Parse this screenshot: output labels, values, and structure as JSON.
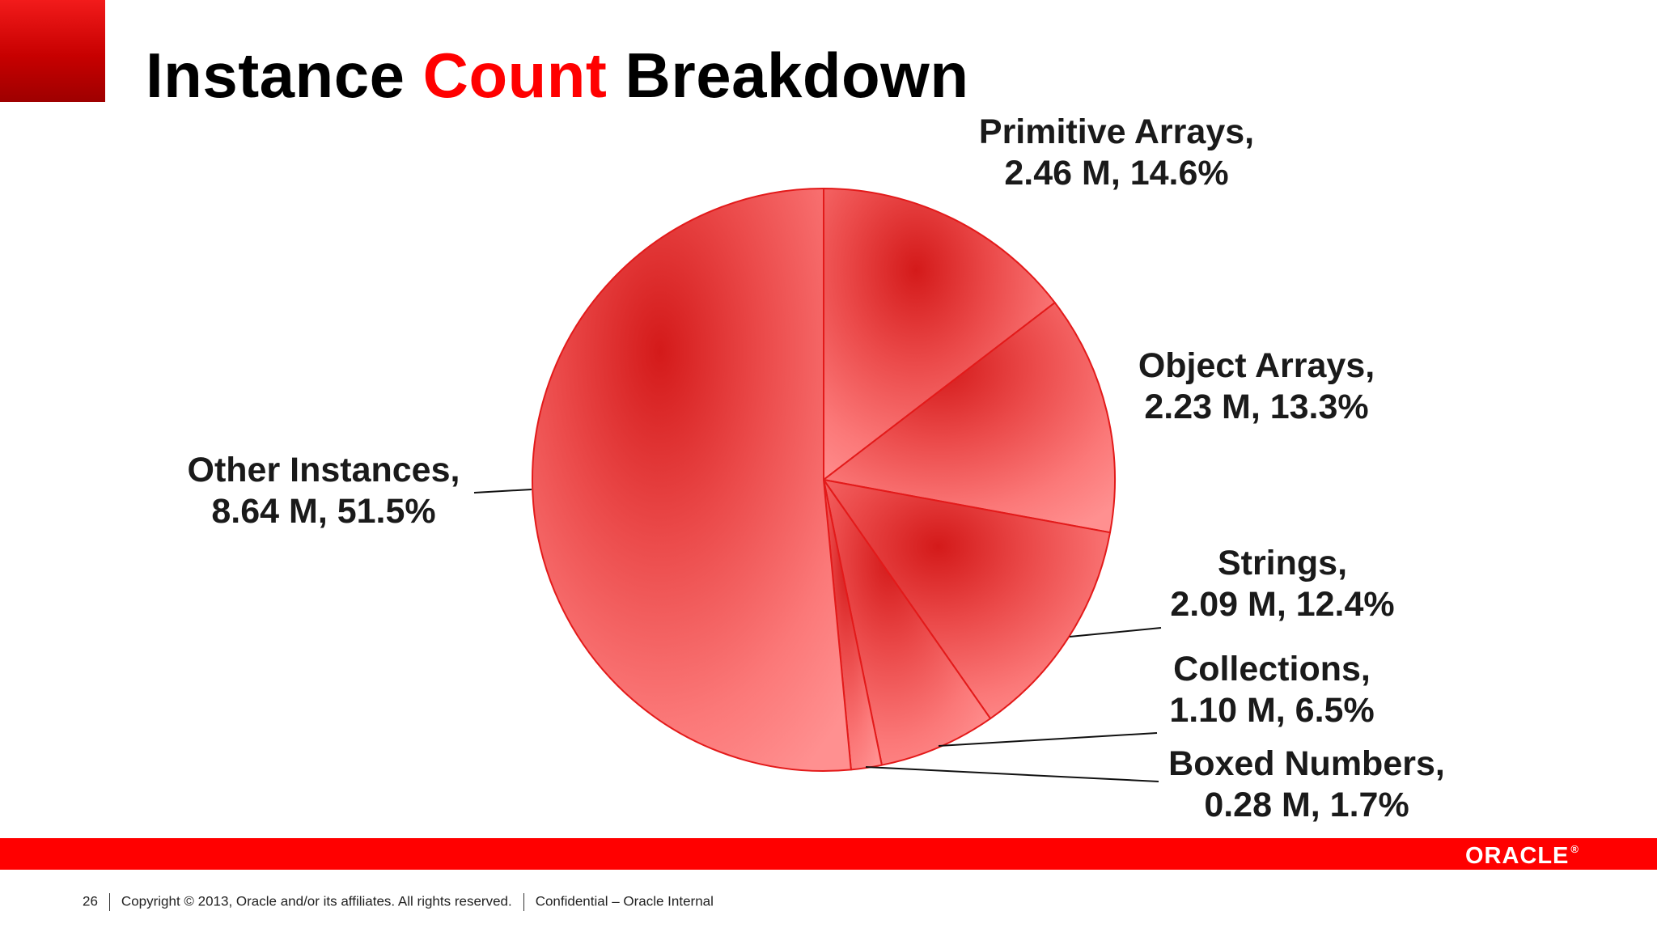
{
  "slide": {
    "title_part1": "Instance ",
    "title_accent": "Count",
    "title_part2": " Breakdown",
    "accent_color": "#ff0000"
  },
  "chart_data": {
    "type": "pie",
    "title": "Instance Count Breakdown",
    "slices": [
      {
        "name": "Primitive Arrays",
        "value_m": 2.46,
        "percent": 14.6,
        "line1": "Primitive Arrays,",
        "line2": "2.46 M, 14.6%"
      },
      {
        "name": "Object Arrays",
        "value_m": 2.23,
        "percent": 13.3,
        "line1": "Object Arrays,",
        "line2": "2.23 M, 13.3%"
      },
      {
        "name": "Strings",
        "value_m": 2.09,
        "percent": 12.4,
        "line1": "Strings,",
        "line2": "2.09 M, 12.4%"
      },
      {
        "name": "Collections",
        "value_m": 1.1,
        "percent": 6.5,
        "line1": "Collections,",
        "line2": "1.10 M, 6.5%"
      },
      {
        "name": "Boxed Numbers",
        "value_m": 0.28,
        "percent": 1.7,
        "line1": "Boxed Numbers,",
        "line2": "0.28 M, 1.7%"
      },
      {
        "name": "Other Instances",
        "value_m": 8.64,
        "percent": 51.5,
        "line1": "Other Instances,",
        "line2": "8.64 M, 51.5%"
      }
    ],
    "start_angle_deg": 0,
    "direction": "clockwise",
    "exploded": [
      "Strings",
      "Collections",
      "Boxed Numbers",
      "Other Instances"
    ],
    "slice_color": "#f26060",
    "edge_color": "#e31a1a"
  },
  "footer": {
    "page_number": "26",
    "copyright": "Copyright © 2013, Oracle and/or its affiliates. All rights reserved.",
    "confidential": "Confidential – Oracle Internal",
    "logo_text": "ORACLE",
    "logo_mark": "®",
    "bar_color": "#ff0000"
  }
}
